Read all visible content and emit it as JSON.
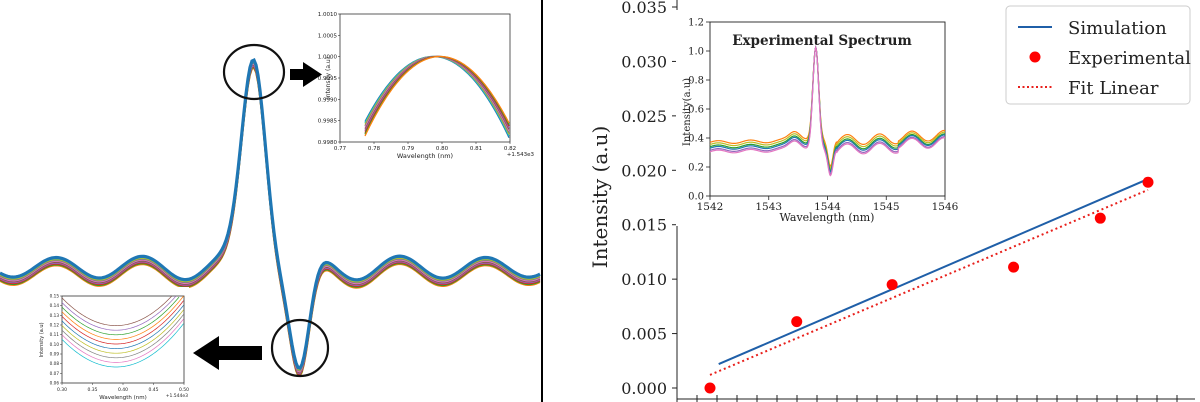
{
  "left_panel": {
    "zoom_top": {
      "y_label": "Intensity (a.u)",
      "x_label": "Wavelength (nm)",
      "offset_text": "+1.543e3",
      "x_ticks": [
        "0.77",
        "0.78",
        "0.79",
        "0.80",
        "0.81",
        "0.82"
      ],
      "y_ticks": [
        "1.0010",
        "1.0005",
        "1.0000",
        "0.9995",
        "0.9990",
        "0.9985",
        "0.9980"
      ]
    },
    "zoom_bottom": {
      "y_label": "Intensity (a.u)",
      "x_label": "Wavelength (nm)",
      "offset_text": "+1.544e3",
      "x_ticks": [
        "0.30",
        "0.35",
        "0.40",
        "0.45",
        "0.50"
      ],
      "y_ticks": [
        "0.15",
        "0.14",
        "0.13",
        "0.12",
        "0.11",
        "0.10",
        "0.09",
        "0.08",
        "0.07",
        "0.06"
      ]
    },
    "colors": [
      "#1f77b4",
      "#17becf",
      "#bcbd22",
      "#7f7f7f",
      "#e377c2",
      "#8c564b",
      "#9467bd",
      "#d62728",
      "#2ca02c",
      "#ff7f0e"
    ]
  },
  "chart_data": [
    {
      "type": "line",
      "title": "",
      "ylabel": "Intensity (a.u)",
      "xlabel": "",
      "ylim": [
        0.0,
        0.035
      ],
      "xlim": [
        0,
        10.6
      ],
      "y_ticks": [
        "0.000",
        "0.005",
        "0.010",
        "0.015",
        "0.020",
        "0.025",
        "0.030",
        "0.035"
      ],
      "series": [
        {
          "name": "Simulation",
          "style": "solid",
          "color": "#1f5fa8",
          "x": [
            0.2,
            10.1
          ],
          "y": [
            0.0022,
            0.0192
          ]
        },
        {
          "name": "Experimental",
          "style": "marker",
          "color": "#ff0000",
          "x": [
            0.0,
            2.0,
            4.2,
            7.0,
            9.0,
            10.1
          ],
          "y": [
            0.0,
            0.0061,
            0.0095,
            0.0111,
            0.0156,
            0.0189
          ]
        },
        {
          "name": "Fit Linear",
          "style": "dotted",
          "color": "#e8201c",
          "x": [
            0.0,
            10.1
          ],
          "y": [
            0.0012,
            0.0182
          ]
        }
      ],
      "legend": {
        "position": "top-right",
        "entries": [
          "Simulation",
          "Experimental",
          "Fit Linear"
        ]
      }
    },
    {
      "type": "line",
      "title": "Experimental Spectrum",
      "xlabel": "Wavelength (nm)",
      "ylabel": "Intensity(a.u)",
      "xlim": [
        1542,
        1546
      ],
      "ylim": [
        0.0,
        1.2
      ],
      "x_ticks": [
        "1542",
        "1543",
        "1544",
        "1545",
        "1546"
      ],
      "y_ticks": [
        "0.0",
        "0.2",
        "0.4",
        "0.6",
        "0.8",
        "1.0",
        "1.2"
      ],
      "peak_x": 1543.8,
      "series_colors": [
        "#ff7f0e",
        "#bcbd22",
        "#2ca02c",
        "#1f77b4",
        "#9467bd",
        "#e377c2"
      ]
    }
  ]
}
